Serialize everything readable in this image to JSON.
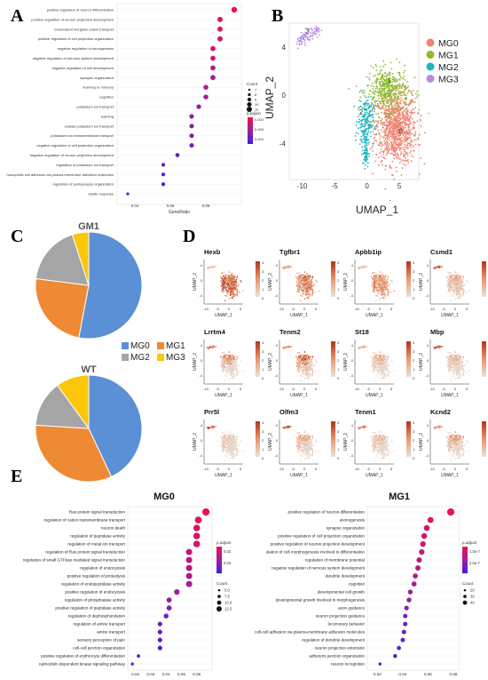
{
  "panels": {
    "A": "A",
    "B": "B",
    "C": "C",
    "D": "D",
    "E": "E"
  },
  "panelA": {
    "terms": [
      "positive regulation of neuron differentiation",
      "positive regulation of neuron projection development",
      "monovalent inorganic cation transport",
      "positive regulation of cell projection organization",
      "negative regulation of neurogenesis",
      "negative regulation of nervous system development",
      "negative regulation of cell development",
      "synapse organization",
      "learning or memory",
      "cognition",
      "potassium ion transport",
      "learning",
      "cellular potassium ion transport",
      "potassium ion transmembrane transport",
      "negative regulation of cell projection organization",
      "negative regulation of neuron projection development",
      "regulation of potassium ion transport",
      "homophilic cell adhesion via plasma membrane adhesion molecules",
      "regulation of postsynapse organization",
      "startle response"
    ],
    "x_values": [
      0.096,
      0.088,
      0.088,
      0.088,
      0.084,
      0.084,
      0.084,
      0.084,
      0.08,
      0.08,
      0.076,
      0.072,
      0.072,
      0.072,
      0.072,
      0.064,
      0.056,
      0.056,
      0.056,
      0.036
    ],
    "xticks": [
      "0.04",
      "0.06",
      "0.08"
    ],
    "xlabel": "GeneRatio",
    "count_title": "Count",
    "count_labels": [
      "7",
      "8",
      "9",
      "10",
      "11"
    ],
    "padj_title": "p.adjust",
    "padj_labels": [
      "0.002",
      "0.003",
      "0.004"
    ]
  },
  "panelB": {
    "ylabel": "UMAP_2",
    "xlabel": "UMAP_1",
    "xticks": [
      "-10",
      "-5",
      "0",
      "5"
    ],
    "yticks": [
      "4",
      "0",
      "-4"
    ],
    "clusters": [
      {
        "label": "MG0",
        "color": "#f0826f",
        "num": "0"
      },
      {
        "label": "MG1",
        "color": "#8cbc2c",
        "num": "1"
      },
      {
        "label": "MG2",
        "color": "#1fb5be",
        "num": "2"
      },
      {
        "label": "MG3",
        "color": "#b988e6",
        "num": "3"
      }
    ]
  },
  "panelC": {
    "pies": [
      {
        "title": "GM1",
        "values": [
          53,
          24,
          18,
          5
        ]
      },
      {
        "title": "WT",
        "values": [
          43,
          33,
          14,
          10
        ]
      }
    ],
    "legend": [
      {
        "label": "MG0",
        "color": "#5b8fd6"
      },
      {
        "label": "MG1",
        "color": "#ef8a34"
      },
      {
        "label": "MG2",
        "color": "#a5a5a5"
      },
      {
        "label": "MG3",
        "color": "#fcc60b"
      }
    ]
  },
  "panelD": {
    "genes": [
      "Hexb",
      "Tgfbr1",
      "Apbb1ip",
      "Csmd1",
      "Lrrtm4",
      "Tenm2",
      "St18",
      "Mbp",
      "Prr5l",
      "Olfm3",
      "Tenm1",
      "Kcnd2"
    ],
    "ylabel": "UMAP_2",
    "xlabel": "UMAP_1",
    "xticks": [
      "-10",
      "-5",
      "0",
      "5"
    ],
    "yticks": [
      "4",
      "0",
      "-4"
    ],
    "scale": [
      "4",
      "3",
      "2",
      "1",
      "0"
    ]
  },
  "panelE": {
    "mg0": {
      "title": "MG0",
      "terms": [
        "Ras protein signal transduction",
        "regulation of cation transmembrane transport",
        "neuron death",
        "regulation of peptidase activity",
        "regulation of metal ion transport",
        "regulation of Ras protein signal transduction",
        "regulation of small GTPase mediated signal transduction",
        "regulation of endocytosis",
        "positive regulation of proteolysis",
        "regulation of endopeptidase activity",
        "positive regulation of endocytosis",
        "regulation of phosphatase activity",
        "positive regulation of peptidase activity",
        "regulation of dephosphorylation",
        "regulation of amine transport",
        "amine transport",
        "sensory perception of pain",
        "cell-cell junction organization",
        "positive regulation of erythrocyte differentiation",
        "calmodulin dependent kinase signaling pathway"
      ],
      "x_values": [
        0.066,
        0.061,
        0.06,
        0.06,
        0.06,
        0.055,
        0.055,
        0.055,
        0.055,
        0.055,
        0.047,
        0.042,
        0.042,
        0.04,
        0.036,
        0.036,
        0.036,
        0.036,
        0.022,
        0.018
      ],
      "xticks": [
        "0.02",
        "0.03",
        "0.04",
        "0.05",
        "0.06"
      ],
      "xlabel": "GeneRatio",
      "padj_title": "p.adjust",
      "padj_labels": [
        "0.02",
        "0.03"
      ],
      "count_title": "Count",
      "count_labels": [
        "5.0",
        "7.5",
        "10.0",
        "12.5"
      ]
    },
    "mg1": {
      "title": "MG1",
      "terms": [
        "positive regulation of neuron differentiation",
        "axonogenesis",
        "synapse organization",
        "positive regulation of cell projection organization",
        "positive regulation of neuron projection development",
        "ulation of cell morphogenesis involved in differentiation",
        "regulation of membrane potential",
        "negative regulation of nervous system development",
        "dendrite development",
        "cognition",
        "developmental cell growth",
        "developmental growth involved in morphogenesis",
        "axon guidance",
        "neuron projection guidance",
        "locomotory behavior",
        "cell-cell adhesion via plasma-membrane adhesion molecules",
        "regulation of dendrite development",
        "neuron projection extension",
        "adherens junction organization",
        "neuron recognition"
      ],
      "x_values": [
        0.078,
        0.062,
        0.059,
        0.057,
        0.056,
        0.055,
        0.053,
        0.052,
        0.05,
        0.049,
        0.046,
        0.045,
        0.043,
        0.042,
        0.042,
        0.041,
        0.04,
        0.037,
        0.034,
        0.022
      ],
      "xticks": [
        "0.02",
        "0.04",
        "0.06",
        "0.08"
      ],
      "xlabel": "GeneRatio",
      "padj_title": "p.adjust",
      "padj_labels": [
        "1.0e-7",
        "2.0e-7"
      ],
      "count_title": "Count",
      "count_labels": [
        "20",
        "30",
        "40"
      ]
    }
  }
}
